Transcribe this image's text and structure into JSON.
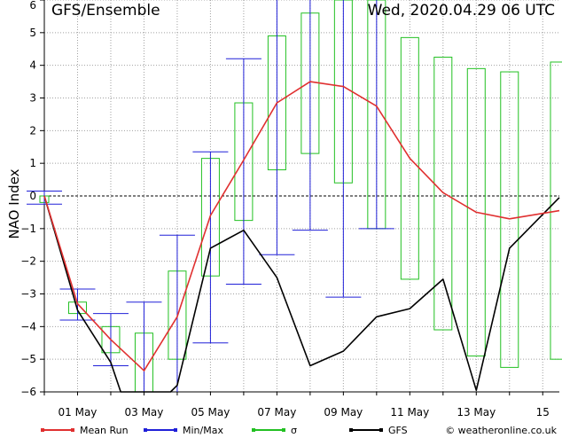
{
  "chart_data": {
    "type": "line",
    "title": "GFS/Ensemble",
    "run_label": "Wed, 2020.04.29   06 UTC",
    "ylabel": "NAO Index",
    "xlabel": "",
    "ylim": [
      -6,
      6
    ],
    "xlim": [
      0,
      15.5
    ],
    "yticks": [
      -6,
      -5,
      -4,
      -3,
      -2,
      -1,
      0,
      1,
      2,
      3,
      4,
      5,
      6
    ],
    "yticklabels": [
      "−6",
      "−5",
      "−4",
      "−3",
      "−2",
      "−1",
      "0",
      "1",
      "2",
      "3",
      "4",
      "5",
      "6"
    ],
    "xticks": [
      1,
      3,
      5,
      7,
      9,
      11,
      13,
      15
    ],
    "xticklabels": [
      "01 May",
      "03 May",
      "05 May",
      "07 May",
      "09 May",
      "11 May",
      "13 May",
      "15"
    ],
    "grid": true,
    "legend_position": "bottom",
    "copyright": "© weatheronline.co.uk",
    "colors": {
      "mean": "#e03030",
      "minmax": "#2020d8",
      "sigma": "#22c022",
      "gfs": "#000000",
      "grid": "#a0a0a0",
      "zero": "#000000"
    },
    "series": [
      {
        "name": "Mean Run",
        "key": "mean",
        "x": [
          0,
          1,
          2,
          3,
          4,
          5,
          6,
          7,
          8,
          9,
          10,
          11,
          12,
          13,
          14,
          15.5
        ],
        "values": [
          0.0,
          -3.3,
          -4.4,
          -5.35,
          -3.7,
          -0.6,
          1.1,
          2.85,
          3.5,
          3.35,
          2.75,
          1.15,
          0.1,
          -0.5,
          -0.7,
          -0.45
        ]
      },
      {
        "name": "Min/Max",
        "key": "minmax",
        "x": [
          0,
          1,
          2,
          3,
          4,
          5,
          6,
          7,
          8,
          9,
          10
        ],
        "min": [
          -0.25,
          -3.8,
          -5.2,
          -7.0,
          -7.0,
          -4.5,
          -2.7,
          -1.8,
          -1.05,
          -3.1,
          -1.0
        ],
        "max": [
          0.15,
          -2.85,
          -3.6,
          -3.25,
          -1.2,
          1.35,
          4.2,
          7.0,
          7.0,
          7.0,
          7.0
        ]
      },
      {
        "name": "σ",
        "key": "sigma",
        "x": [
          0,
          1,
          2,
          3,
          4,
          5,
          6,
          7,
          8,
          9,
          10,
          11,
          12,
          13,
          14,
          15.5
        ],
        "low": [
          -0.2,
          -3.6,
          -4.8,
          -7.0,
          -5.0,
          -2.45,
          -0.75,
          0.8,
          1.3,
          0.4,
          -1.0,
          -2.55,
          -4.1,
          -4.9,
          -5.25,
          -5.0
        ],
        "high": [
          0.0,
          -3.25,
          -4.0,
          -4.2,
          -2.3,
          1.15,
          2.85,
          4.9,
          5.6,
          7.0,
          7.0,
          4.85,
          4.25,
          3.9,
          3.8,
          4.1
        ]
      },
      {
        "name": "GFS",
        "key": "gfs",
        "x": [
          0,
          1,
          2,
          2.3,
          3.8,
          4,
          5,
          6,
          7,
          8,
          9,
          10,
          11,
          12,
          13,
          14,
          15.5
        ],
        "values": [
          0.0,
          -3.5,
          -5.1,
          -6.0,
          -6.0,
          -5.8,
          -1.6,
          -1.05,
          -2.5,
          -5.2,
          -4.75,
          -3.7,
          -3.45,
          -2.55,
          -5.95,
          -1.6,
          -0.05
        ]
      }
    ]
  }
}
